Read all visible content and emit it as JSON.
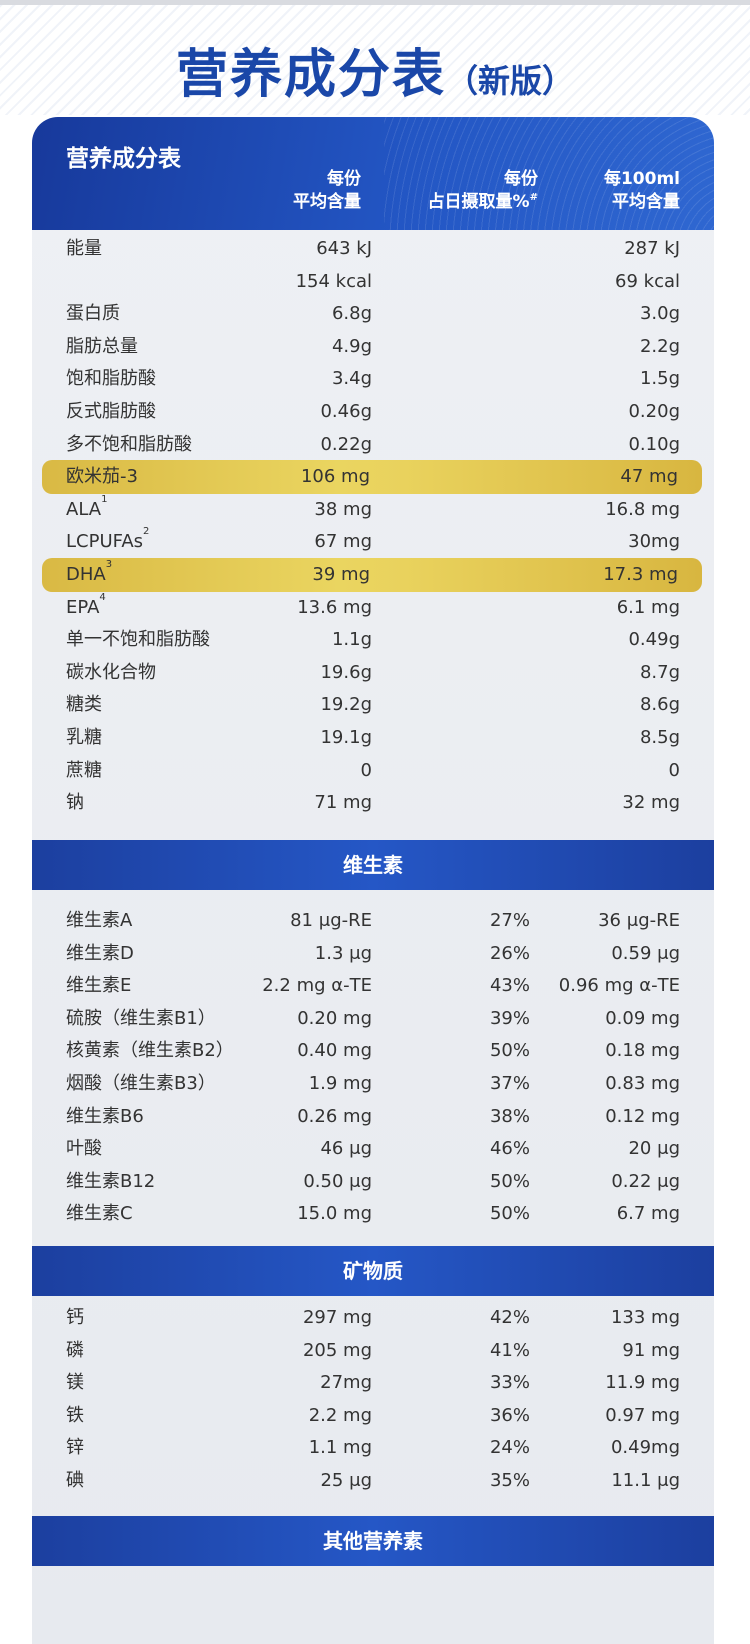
{
  "page_title": {
    "main": "营养成分表",
    "sub": "（新版）"
  },
  "card": {
    "title": "营养成分表",
    "col1": {
      "line1": "每份",
      "line2": "平均含量"
    },
    "col2": {
      "line1": "每份",
      "line2": "占日摄取量%",
      "mark": "#"
    },
    "col3": {
      "line1": "每100ml",
      "line2": "平均含量"
    }
  },
  "nutrients": [
    {
      "name": "能量",
      "v1": "643 kJ",
      "v3": "287 kJ"
    },
    {
      "name": "",
      "v1": "154 kcal",
      "v3": "69 kcal"
    },
    {
      "name": "蛋白质",
      "v1": "6.8g",
      "v3": "3.0g"
    },
    {
      "name": "脂肪总量",
      "v1": "4.9g",
      "v3": "2.2g"
    },
    {
      "name": "饱和脂肪酸",
      "v1": "3.4g",
      "v3": "1.5g"
    },
    {
      "name": "反式脂肪酸",
      "v1": "0.46g",
      "v3": "0.20g"
    },
    {
      "name": "多不饱和脂肪酸",
      "v1": "0.22g",
      "v3": "0.10g"
    },
    {
      "name": "欧米茄-3",
      "v1": "106 mg",
      "v3": "47 mg",
      "highlight": true
    },
    {
      "name": "ALA",
      "sup": "1",
      "v1": "38 mg",
      "v3": "16.8 mg"
    },
    {
      "name": "LCPUFAs",
      "sup": "2",
      "v1": "67 mg",
      "v3": "30mg"
    },
    {
      "name": "DHA",
      "sup": "3",
      "v1": "39 mg",
      "v3": "17.3 mg",
      "highlight": true
    },
    {
      "name": "EPA",
      "sup": "4",
      "v1": "13.6 mg",
      "v3": "6.1 mg"
    },
    {
      "name": "单一不饱和脂肪酸",
      "v1": "1.1g",
      "v3": "0.49g"
    },
    {
      "name": "碳水化合物",
      "v1": "19.6g",
      "v3": "8.7g"
    },
    {
      "name": "糖类",
      "v1": "19.2g",
      "v3": "8.6g"
    },
    {
      "name": "乳糖",
      "v1": "19.1g",
      "v3": "8.5g"
    },
    {
      "name": "蔗糖",
      "v1": "0",
      "v3": "0"
    },
    {
      "name": "钠",
      "v1": "71 mg",
      "v3": "32 mg"
    }
  ],
  "vitamins": {
    "title": "维生素",
    "rows": [
      {
        "name": "维生素A",
        "v1": "81 μg-RE",
        "v2": "27%",
        "v3": "36 μg-RE"
      },
      {
        "name": "维生素D",
        "v1": "1.3 μg",
        "v2": "26%",
        "v3": "0.59 μg"
      },
      {
        "name": "维生素E",
        "v1": "2.2 mg α-TE",
        "v2": "43%",
        "v3": "0.96 mg α-TE"
      },
      {
        "name": "硫胺（维生素B1）",
        "v1": "0.20 mg",
        "v2": "39%",
        "v3": "0.09 mg"
      },
      {
        "name": "核黄素（维生素B2）",
        "v1": "0.40 mg",
        "v2": "50%",
        "v3": "0.18 mg"
      },
      {
        "name": "烟酸（维生素B3）",
        "v1": "1.9 mg",
        "v2": "37%",
        "v3": "0.83 mg"
      },
      {
        "name": "维生素B6",
        "v1": "0.26 mg",
        "v2": "38%",
        "v3": "0.12 mg"
      },
      {
        "name": "叶酸",
        "v1": "46 μg",
        "v2": "46%",
        "v3": "20 μg"
      },
      {
        "name": "维生素B12",
        "v1": "0.50 μg",
        "v2": "50%",
        "v3": "0.22 μg"
      },
      {
        "name": "维生素C",
        "v1": "15.0 mg",
        "v2": "50%",
        "v3": "6.7 mg"
      }
    ]
  },
  "minerals": {
    "title": "矿物质",
    "rows": [
      {
        "name": "钙",
        "v1": "297 mg",
        "v2": "42%",
        "v3": "133 mg"
      },
      {
        "name": "磷",
        "v1": "205 mg",
        "v2": "41%",
        "v3": "91 mg"
      },
      {
        "name": "镁",
        "v1": "27mg",
        "v2": "33%",
        "v3": "11.9 mg"
      },
      {
        "name": "铁",
        "v1": "2.2 mg",
        "v2": "36%",
        "v3": "0.97 mg"
      },
      {
        "name": "锌",
        "v1": "1.1 mg",
        "v2": "24%",
        "v3": "0.49mg"
      },
      {
        "name": "碘",
        "v1": "25 μg",
        "v2": "35%",
        "v3": "11.1 μg"
      }
    ]
  },
  "others": {
    "title": "其他营养素"
  }
}
